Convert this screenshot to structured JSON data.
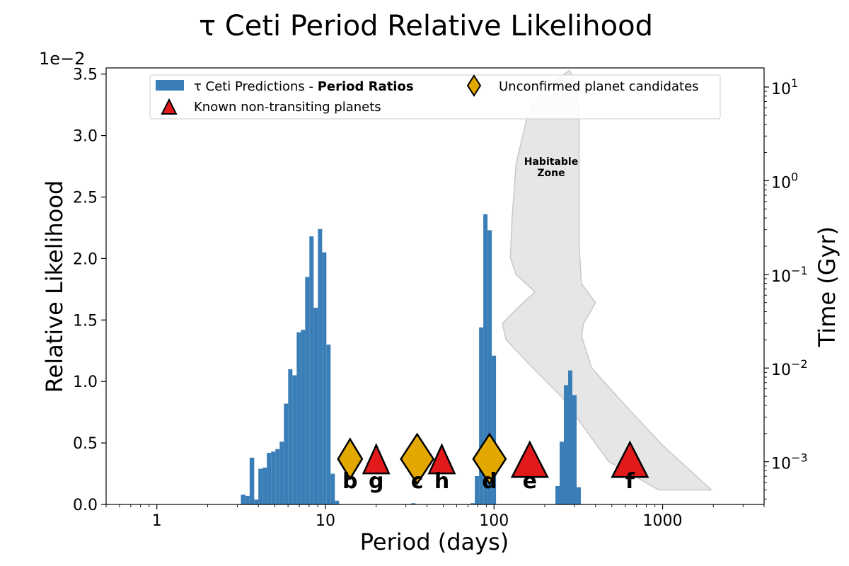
{
  "chart_data": {
    "type": "bar",
    "title": "τ Ceti Period Relative Likelihood",
    "xlabel": "Period (days)",
    "ylabel": "Relative Likelihood",
    "y2label": "Time (Gyr)",
    "y_offset_label": "1e−2",
    "xscale": "log",
    "xlim": [
      0.5,
      4000
    ],
    "ylim": [
      0,
      3.55
    ],
    "y2lim": [
      0.00035,
      16
    ],
    "x_ticks": [
      1,
      10,
      100,
      1000
    ],
    "x_tick_labels": [
      "1",
      "10",
      "100",
      "1000"
    ],
    "y_ticks": [
      0.0,
      0.5,
      1.0,
      1.5,
      2.0,
      2.5,
      3.0,
      3.5
    ],
    "y_tick_labels": [
      "0.0",
      "0.5",
      "1.0",
      "1.5",
      "2.0",
      "2.5",
      "3.0",
      "3.5"
    ],
    "y2_ticks": [
      0.001,
      0.01,
      0.1,
      1,
      10
    ],
    "y2_tick_labels": [
      {
        "base": "10",
        "exp": "−3"
      },
      {
        "base": "10",
        "exp": "−2"
      },
      {
        "base": "10",
        "exp": "−1"
      },
      {
        "base": "10",
        "exp": "0"
      },
      {
        "base": "10",
        "exp": "1"
      }
    ],
    "colors": {
      "bars": "#3a7eb8",
      "candidate": "#e2a800",
      "known": "#e31a1c",
      "hz_fill": "#e6e6e6",
      "hz_edge": "#c8c8c8"
    },
    "histogram": {
      "name": "τ Ceti Predictions - Period Ratios",
      "bin_edges": [
        3.15,
        3.35,
        3.55,
        3.78,
        4.0,
        4.24,
        4.49,
        4.76,
        5.05,
        5.35,
        5.67,
        6.01,
        6.37,
        6.75,
        7.15,
        7.58,
        8.03,
        8.51,
        9.02,
        9.56,
        10.13,
        10.73,
        11.37,
        12.05,
        12.77,
        13.53,
        14.34,
        15.2,
        16.1,
        17.06,
        18.08,
        19.16,
        20.3,
        21.51,
        22.79,
        24.15,
        25.59,
        27.12,
        28.74,
        30.45,
        32.27,
        34.19,
        36.23,
        38.39,
        40.68,
        43.11,
        45.68,
        48.4,
        51.29,
        54.35,
        57.59,
        61.02,
        64.66,
        68.52,
        72.6,
        76.93,
        81.52,
        86.38,
        91.53,
        96.99,
        102.77,
        108.9,
        115.39,
        122.27,
        129.56,
        137.29,
        145.48,
        154.15,
        163.34,
        173.08,
        183.4,
        194.34,
        205.93,
        218.21,
        231.22,
        245.01,
        259.62,
        275.1,
        291.51,
        308.89,
        327.31,
        346.83
      ],
      "values": [
        0.08,
        0.07,
        0.38,
        0.04,
        0.29,
        0.3,
        0.42,
        0.43,
        0.45,
        0.51,
        0.82,
        1.1,
        1.05,
        1.4,
        1.42,
        1.85,
        2.18,
        1.6,
        2.24,
        2.05,
        1.3,
        0.25,
        0.03,
        0.0,
        0.0,
        0.0,
        0.0,
        0.0,
        0.0,
        0.0,
        0.0,
        0.0,
        0.0,
        0.0,
        0.0,
        0.0,
        0.0,
        0.0,
        0.0,
        0.0,
        0.01,
        0.0,
        0.0,
        0.0,
        0.0,
        0.0,
        0.0,
        0.0,
        0.0,
        0.0,
        0.0,
        0.0,
        0.0,
        0.0,
        0.01,
        0.23,
        1.44,
        2.36,
        2.23,
        1.21,
        0.0,
        0.0,
        0.0,
        0.0,
        0.0,
        0.0,
        0.0,
        0.0,
        0.0,
        0.0,
        0.0,
        0.0,
        0.0,
        0.0,
        0.15,
        0.51,
        0.97,
        1.09,
        0.89,
        0.14,
        0.0
      ]
    },
    "planets": [
      {
        "name": "b",
        "period": 14,
        "type": "candidate",
        "marker_y": 0.37,
        "size": "small"
      },
      {
        "name": "g",
        "period": 20,
        "type": "known",
        "marker_y": 0.35,
        "size": "small"
      },
      {
        "name": "c",
        "period": 35,
        "type": "candidate",
        "marker_y": 0.37,
        "size": "large"
      },
      {
        "name": "h",
        "period": 49,
        "type": "known",
        "marker_y": 0.35,
        "size": "small"
      },
      {
        "name": "d",
        "period": 94,
        "type": "candidate",
        "marker_y": 0.37,
        "size": "large"
      },
      {
        "name": "e",
        "period": 163,
        "type": "known",
        "marker_y": 0.35,
        "size": "large"
      },
      {
        "name": "f",
        "period": 640,
        "type": "known",
        "marker_y": 0.35,
        "size": "large"
      }
    ],
    "habitable_zone": {
      "label_line1": "Habitable",
      "label_line2": "Zone",
      "inner_edge": [
        {
          "period": 1950,
          "time_gyr": 0.0005
        },
        {
          "period": 950,
          "time_gyr": 0.0005
        },
        {
          "period": 480,
          "time_gyr": 0.001
        },
        {
          "period": 250,
          "time_gyr": 0.005
        },
        {
          "period": 170,
          "time_gyr": 0.01
        },
        {
          "period": 118,
          "time_gyr": 0.02
        },
        {
          "period": 112,
          "time_gyr": 0.03
        },
        {
          "period": 140,
          "time_gyr": 0.045
        },
        {
          "period": 175,
          "time_gyr": 0.065
        },
        {
          "period": 135,
          "time_gyr": 0.1
        },
        {
          "period": 125,
          "time_gyr": 0.15
        },
        {
          "period": 128,
          "time_gyr": 0.4
        },
        {
          "period": 135,
          "time_gyr": 1.5
        },
        {
          "period": 158,
          "time_gyr": 5
        },
        {
          "period": 200,
          "time_gyr": 10
        },
        {
          "period": 280,
          "time_gyr": 15
        }
      ],
      "outer_edge": [
        {
          "period": 300,
          "time_gyr": 12
        },
        {
          "period": 320,
          "time_gyr": 6
        },
        {
          "period": 320,
          "time_gyr": 1
        },
        {
          "period": 320,
          "time_gyr": 0.2
        },
        {
          "period": 330,
          "time_gyr": 0.08
        },
        {
          "period": 400,
          "time_gyr": 0.05
        },
        {
          "period": 340,
          "time_gyr": 0.03
        },
        {
          "period": 330,
          "time_gyr": 0.022
        },
        {
          "period": 380,
          "time_gyr": 0.01
        },
        {
          "period": 600,
          "time_gyr": 0.004
        },
        {
          "period": 1000,
          "time_gyr": 0.0015
        },
        {
          "period": 1950,
          "time_gyr": 0.0005
        }
      ]
    },
    "legend": {
      "position": "top",
      "entries": [
        {
          "kind": "bar",
          "prefix": "τ Ceti Predictions - ",
          "bold": "Period Ratios"
        },
        {
          "kind": "candidate",
          "text": "Unconfirmed planet candidates"
        },
        {
          "kind": "known",
          "text": "Known non-transiting planets"
        }
      ]
    }
  }
}
